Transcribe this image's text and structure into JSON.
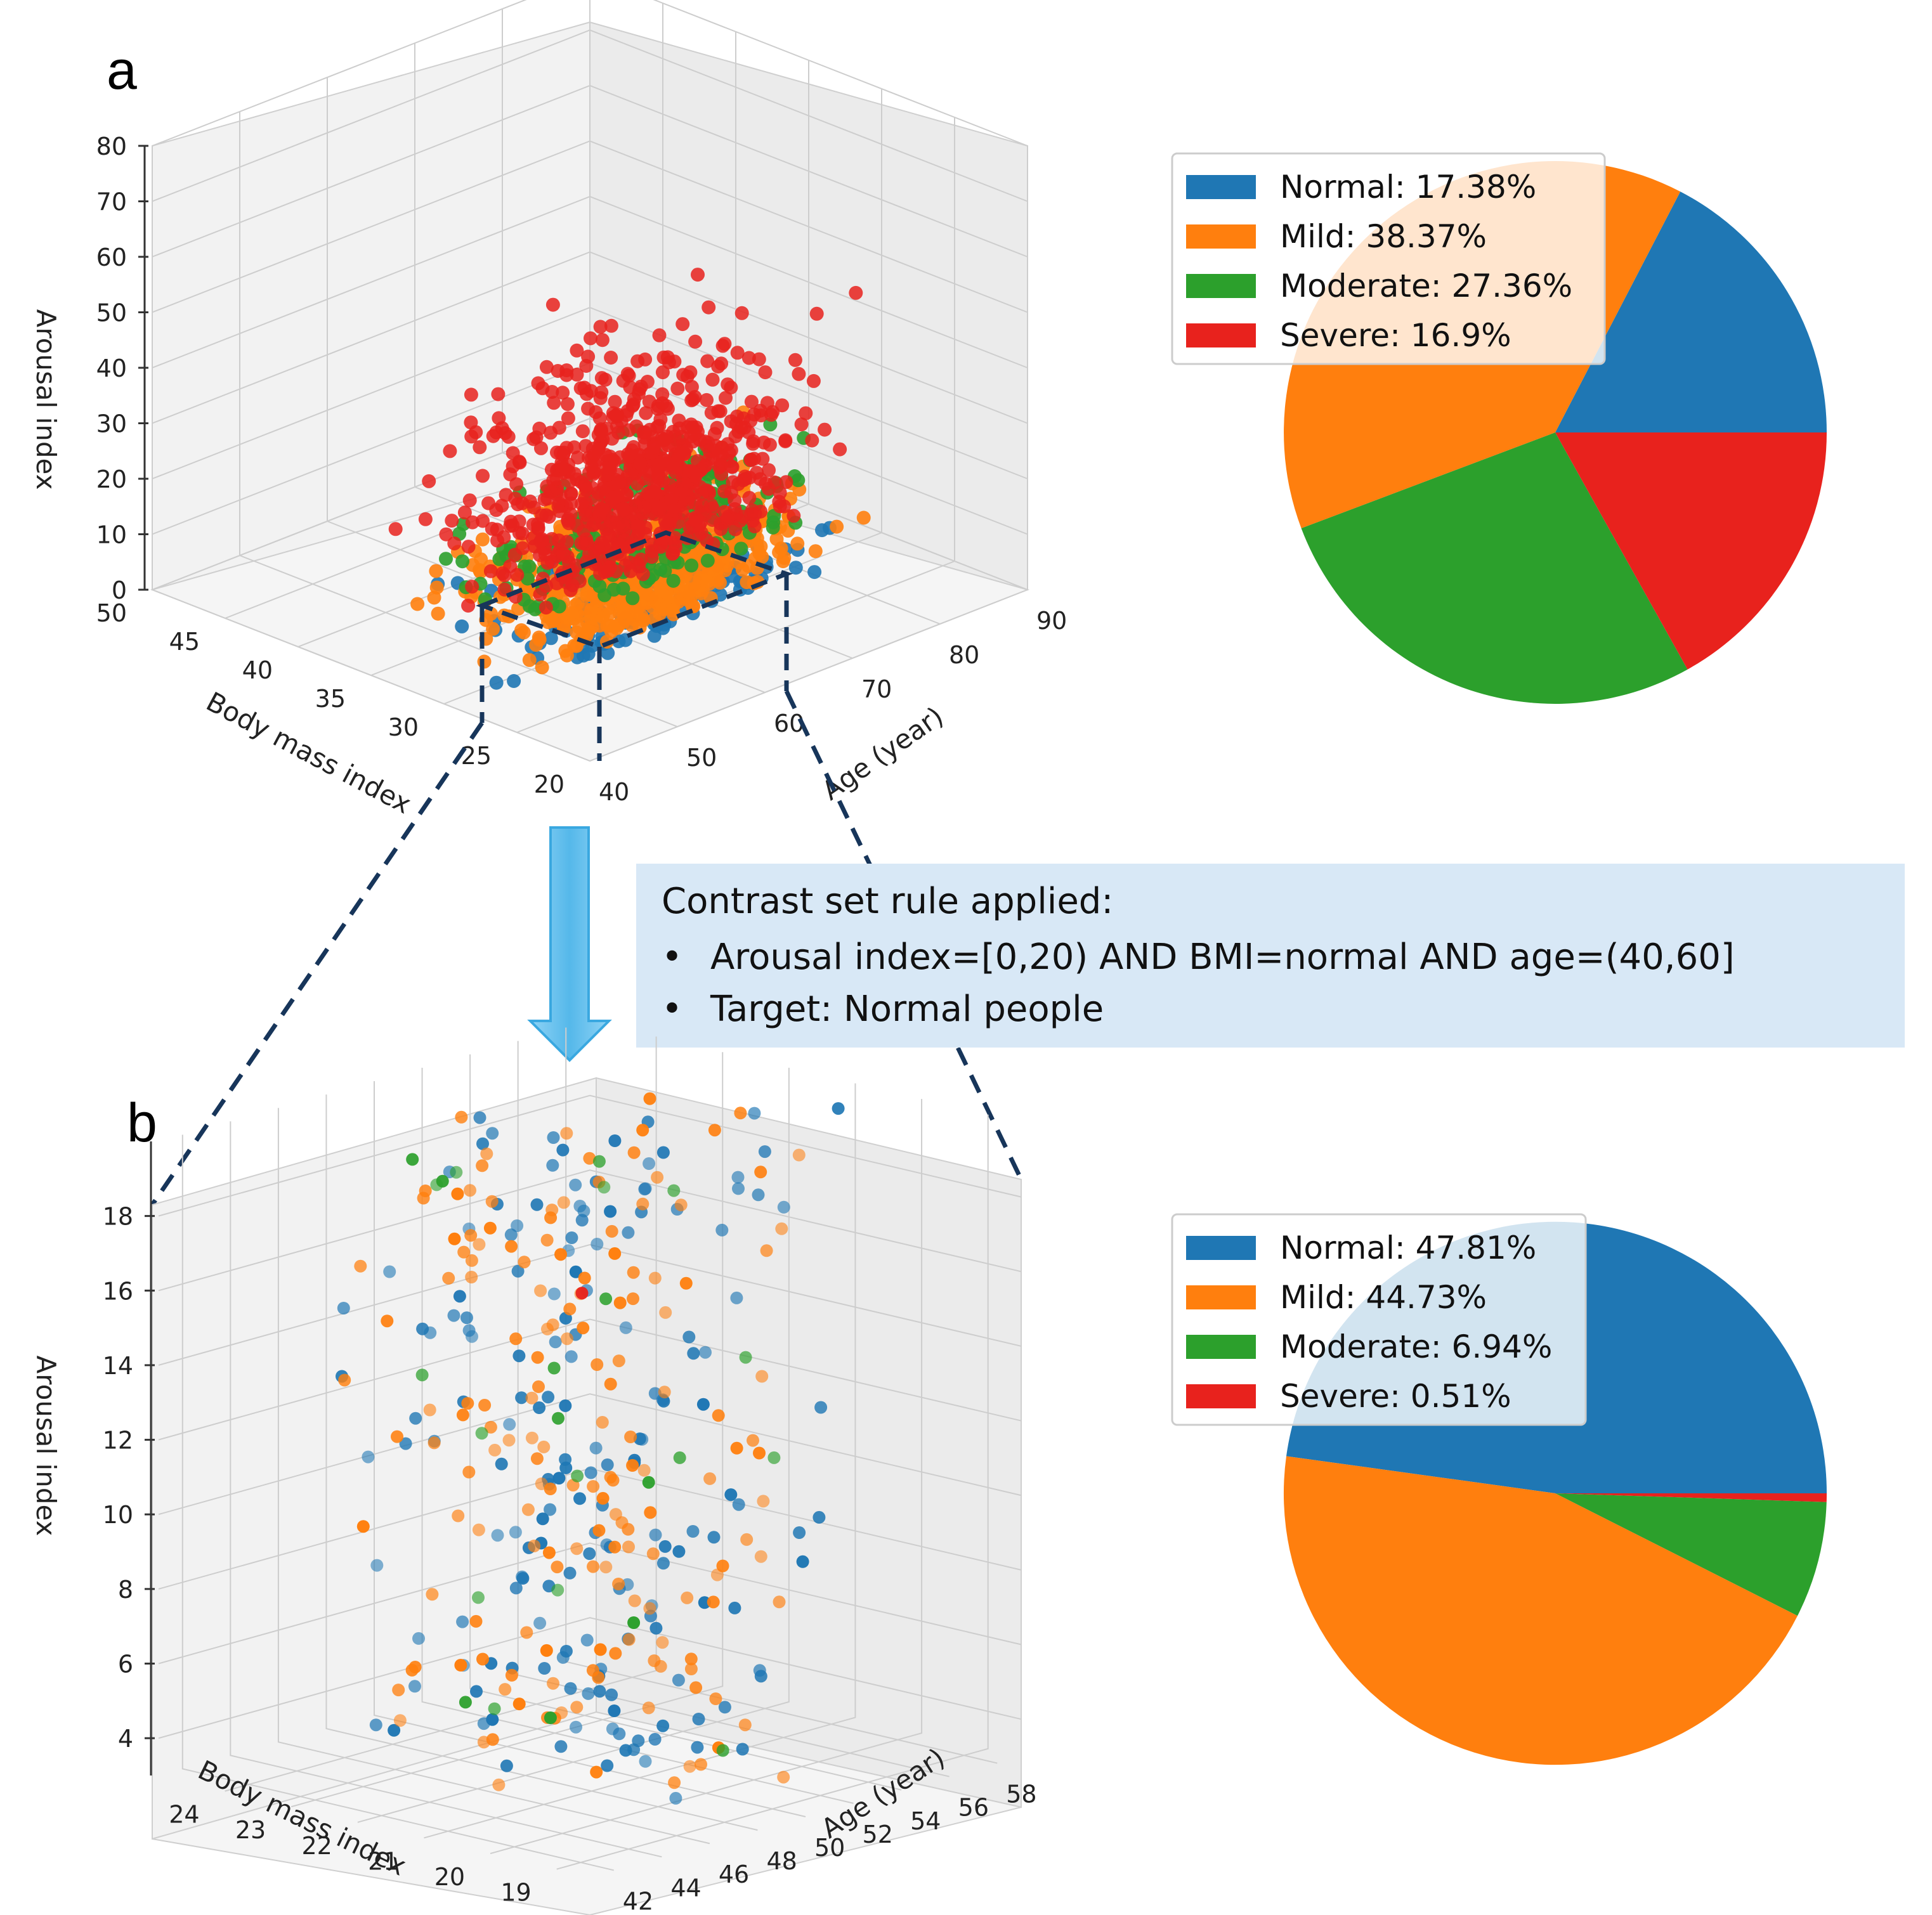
{
  "colors": {
    "normal": "#1f77b4",
    "mild": "#ff7f0e",
    "moderate": "#2ca02c",
    "severe": "#e8221d",
    "rule_box": "#d8e8f6",
    "arrow": "#5ebeee",
    "dash": "#17355a"
  },
  "rule_box": {
    "title": "Contrast set rule applied:",
    "bullets": [
      "Arousal index=[0,20) AND BMI=normal AND age=(40,60]",
      "Target: Normal people"
    ]
  },
  "chart_data": [
    {
      "panel": "a",
      "type": "scatter3d",
      "zlabel": "Arousal index",
      "ylabel": "Body mass index",
      "xlabel": "Age (year)",
      "z_ticks": [
        "0",
        "10",
        "20",
        "30",
        "40",
        "50",
        "60",
        "70",
        "80"
      ],
      "y_ticks": [
        "50",
        "45",
        "40",
        "35",
        "30",
        "25",
        "20"
      ],
      "x_ticks": [
        "40",
        "50",
        "60",
        "70",
        "80",
        "90"
      ],
      "zlim": [
        0,
        80
      ],
      "ylim": [
        20,
        50
      ],
      "xlim": [
        40,
        90
      ],
      "series": [
        {
          "name": "Normal",
          "n": 170,
          "x_range": [
            40,
            90
          ],
          "y_range": [
            20,
            50
          ],
          "z_range": [
            0,
            12
          ]
        },
        {
          "name": "Mild",
          "n": 620,
          "x_range": [
            40,
            90
          ],
          "y_range": [
            20,
            50
          ],
          "z_range": [
            2,
            30
          ]
        },
        {
          "name": "Moderate",
          "n": 210,
          "x_range": [
            40,
            90
          ],
          "y_range": [
            20,
            50
          ],
          "z_range": [
            8,
            45
          ]
        },
        {
          "name": "Severe",
          "n": 720,
          "x_range": [
            40,
            90
          ],
          "y_range": [
            20,
            50
          ],
          "z_range": [
            12,
            80
          ]
        }
      ]
    },
    {
      "panel": "a",
      "type": "pie",
      "labels": [
        "Normal: 17.38%",
        "Mild: 38.37%",
        "Moderate: 27.36%",
        "Severe: 16.9%"
      ],
      "categories": [
        "Normal",
        "Mild",
        "Moderate",
        "Severe"
      ],
      "values": [
        17.38,
        38.37,
        27.36,
        16.9
      ],
      "legend_position": "top-left"
    },
    {
      "panel": "b",
      "type": "scatter3d",
      "zlabel": "Arousal index",
      "ylabel": "Body mass index",
      "xlabel": "Age (year)",
      "z_ticks": [
        "4",
        "6",
        "8",
        "10",
        "12",
        "14",
        "16",
        "18"
      ],
      "y_ticks": [
        "24",
        "23",
        "22",
        "21",
        "20",
        "19"
      ],
      "x_ticks": [
        "42",
        "44",
        "46",
        "48",
        "50",
        "52",
        "54",
        "56",
        "58"
      ],
      "zlim": [
        3,
        20
      ],
      "ylim": [
        18.5,
        25
      ],
      "xlim": [
        41,
        59
      ],
      "series": [
        {
          "name": "Normal",
          "n": 170,
          "x_range": [
            41,
            59
          ],
          "y_range": [
            18.5,
            25
          ],
          "z_range": [
            3,
            20
          ]
        },
        {
          "name": "Mild",
          "n": 165,
          "x_range": [
            41,
            59
          ],
          "y_range": [
            18.5,
            25
          ],
          "z_range": [
            3,
            20
          ]
        },
        {
          "name": "Moderate",
          "n": 24,
          "x_range": [
            41,
            59
          ],
          "y_range": [
            18.5,
            25
          ],
          "z_range": [
            3,
            20
          ]
        },
        {
          "name": "Severe",
          "n": 1,
          "x_range": [
            48,
            50
          ],
          "y_range": [
            21,
            22
          ],
          "z_range": [
            15,
            16
          ]
        }
      ]
    },
    {
      "panel": "b",
      "type": "pie",
      "labels": [
        "Normal: 47.81%",
        "Mild: 44.73%",
        "Moderate: 6.94%",
        "Severe: 0.51%"
      ],
      "categories": [
        "Normal",
        "Mild",
        "Moderate",
        "Severe"
      ],
      "values": [
        47.81,
        44.73,
        6.94,
        0.51
      ],
      "legend_position": "top-left"
    }
  ],
  "panel_labels": [
    "a",
    "b"
  ]
}
